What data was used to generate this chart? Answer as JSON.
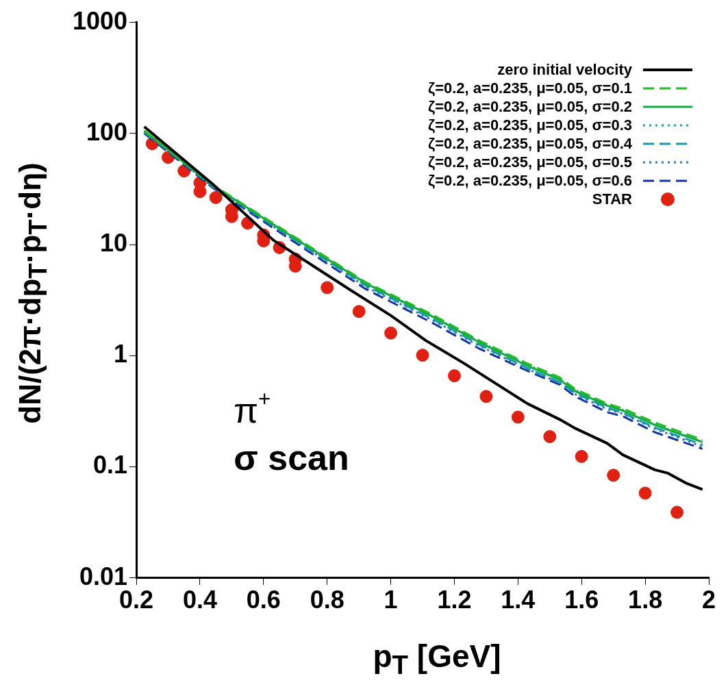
{
  "chart_data": {
    "type": "line",
    "xlabel": "p$_{T}$ [GeV]",
    "ylabel": "dN/(2π·dp$_{T}$·p$_{T}$·dη)",
    "annotations": [
      "π$^{+}$",
      "σ scan"
    ],
    "xlim": [
      0.2,
      2
    ],
    "xticks": [
      0.2,
      0.4,
      0.6,
      0.8,
      1,
      1.2,
      1.4,
      1.6,
      1.8,
      2
    ],
    "ylim": [
      0.01,
      1000
    ],
    "yticks": [
      0.01,
      0.1,
      1,
      10,
      100,
      1000
    ],
    "log": "y",
    "grid": false,
    "legend": "top right",
    "series": [
      {
        "name": "zero initial velocity",
        "type": "line",
        "color": "#000000",
        "line_style": "solid",
        "marker": "none",
        "x": [
          0.225,
          0.44,
          0.63,
          0.85,
          1.0,
          1.11,
          1.23,
          1.43,
          1.53,
          1.58,
          1.68,
          1.73,
          1.83,
          1.87,
          1.93,
          1.98
        ],
        "values": [
          115,
          35,
          11,
          4.3,
          2.3,
          1.37,
          0.855,
          0.37,
          0.268,
          0.222,
          0.163,
          0.128,
          0.094,
          0.088,
          0.071,
          0.0625
        ]
      },
      {
        "name": "ζ=0.2, a=0.235, μ=0.05, σ=0.1",
        "type": "line",
        "color": "#22bb22",
        "line_style": "dashed",
        "marker": "none",
        "x": [
          0.225,
          0.3,
          0.44,
          0.7,
          0.92,
          1.13,
          1.28,
          1.43,
          1.53,
          1.58,
          1.68,
          1.73,
          1.83,
          1.98
        ],
        "values": [
          106,
          72,
          34.5,
          11.6,
          4.6,
          2.35,
          1.36,
          0.85,
          0.64,
          0.5,
          0.37,
          0.335,
          0.25,
          0.175
        ]
      },
      {
        "name": "ζ=0.2, a=0.235, μ=0.05, σ=0.2",
        "type": "line",
        "color": "#11aa44",
        "line_style": "solid",
        "marker": "none",
        "x": [
          0.225,
          0.3,
          0.44,
          0.7,
          0.92,
          1.13,
          1.28,
          1.43,
          1.53,
          1.58,
          1.68,
          1.73,
          1.83,
          1.98
        ],
        "values": [
          105,
          71,
          34,
          11.3,
          4.5,
          2.26,
          1.31,
          0.81,
          0.61,
          0.48,
          0.356,
          0.32,
          0.238,
          0.167
        ]
      },
      {
        "name": "ζ=0.2, a=0.235, μ=0.05, σ=0.3",
        "type": "line",
        "color": "#11aa88",
        "line_style": "dotted",
        "marker": "none",
        "x": [
          0.225,
          0.3,
          0.44,
          0.7,
          0.92,
          1.13,
          1.28,
          1.43,
          1.53,
          1.58,
          1.68,
          1.73,
          1.83,
          1.98
        ],
        "values": [
          104,
          71,
          34,
          11.4,
          4.5,
          2.28,
          1.33,
          0.83,
          0.62,
          0.49,
          0.36,
          0.325,
          0.24,
          0.168
        ]
      },
      {
        "name": "ζ=0.2, a=0.235, μ=0.05, σ=0.4",
        "type": "line",
        "color": "#1199aa",
        "line_style": "dashed",
        "marker": "none",
        "x": [
          0.225,
          0.3,
          0.44,
          0.7,
          0.92,
          1.13,
          1.28,
          1.43,
          1.53,
          1.58,
          1.68,
          1.73,
          1.83,
          1.98
        ],
        "values": [
          103,
          70,
          33.5,
          11,
          4.3,
          2.15,
          1.25,
          0.77,
          0.58,
          0.46,
          0.34,
          0.305,
          0.225,
          0.158
        ]
      },
      {
        "name": "ζ=0.2, a=0.235, μ=0.05, σ=0.5",
        "type": "line",
        "color": "#2277cc",
        "line_style": "dotted",
        "marker": "none",
        "x": [
          0.225,
          0.3,
          0.44,
          0.7,
          0.92,
          1.13,
          1.28,
          1.43,
          1.53,
          1.58,
          1.68,
          1.73,
          1.83,
          1.98
        ],
        "values": [
          102,
          70,
          33,
          10.8,
          4.2,
          2.1,
          1.22,
          0.76,
          0.57,
          0.45,
          0.33,
          0.3,
          0.22,
          0.152
        ]
      },
      {
        "name": "ζ=0.2, a=0.235, μ=0.05, σ=0.6",
        "type": "line",
        "color": "#1133aa",
        "line_style": "dashed",
        "marker": "none",
        "x": [
          0.225,
          0.3,
          0.44,
          0.7,
          0.92,
          1.13,
          1.28,
          1.43,
          1.53,
          1.58,
          1.68,
          1.73,
          1.83,
          1.98
        ],
        "values": [
          100,
          68,
          32.5,
          10.4,
          4.0,
          1.98,
          1.15,
          0.73,
          0.55,
          0.43,
          0.31,
          0.285,
          0.205,
          0.145
        ]
      },
      {
        "name": "STAR",
        "type": "scatter",
        "color": "#e02010",
        "marker": "circle",
        "x": [
          0.25,
          0.3,
          0.35,
          0.4,
          0.4,
          0.45,
          0.5,
          0.5,
          0.55,
          0.6,
          0.6,
          0.65,
          0.7,
          0.7,
          0.8,
          0.9,
          1.0,
          1.1,
          1.2,
          1.3,
          1.4,
          1.5,
          1.6,
          1.7,
          1.8,
          1.9
        ],
        "values": [
          81,
          61,
          46,
          36,
          30,
          26.5,
          20.6,
          17.9,
          15.6,
          12.2,
          10.8,
          9.4,
          7.4,
          6.4,
          4.1,
          2.5,
          1.6,
          1.01,
          0.66,
          0.43,
          0.28,
          0.187,
          0.124,
          0.084,
          0.058,
          0.039
        ]
      }
    ]
  }
}
